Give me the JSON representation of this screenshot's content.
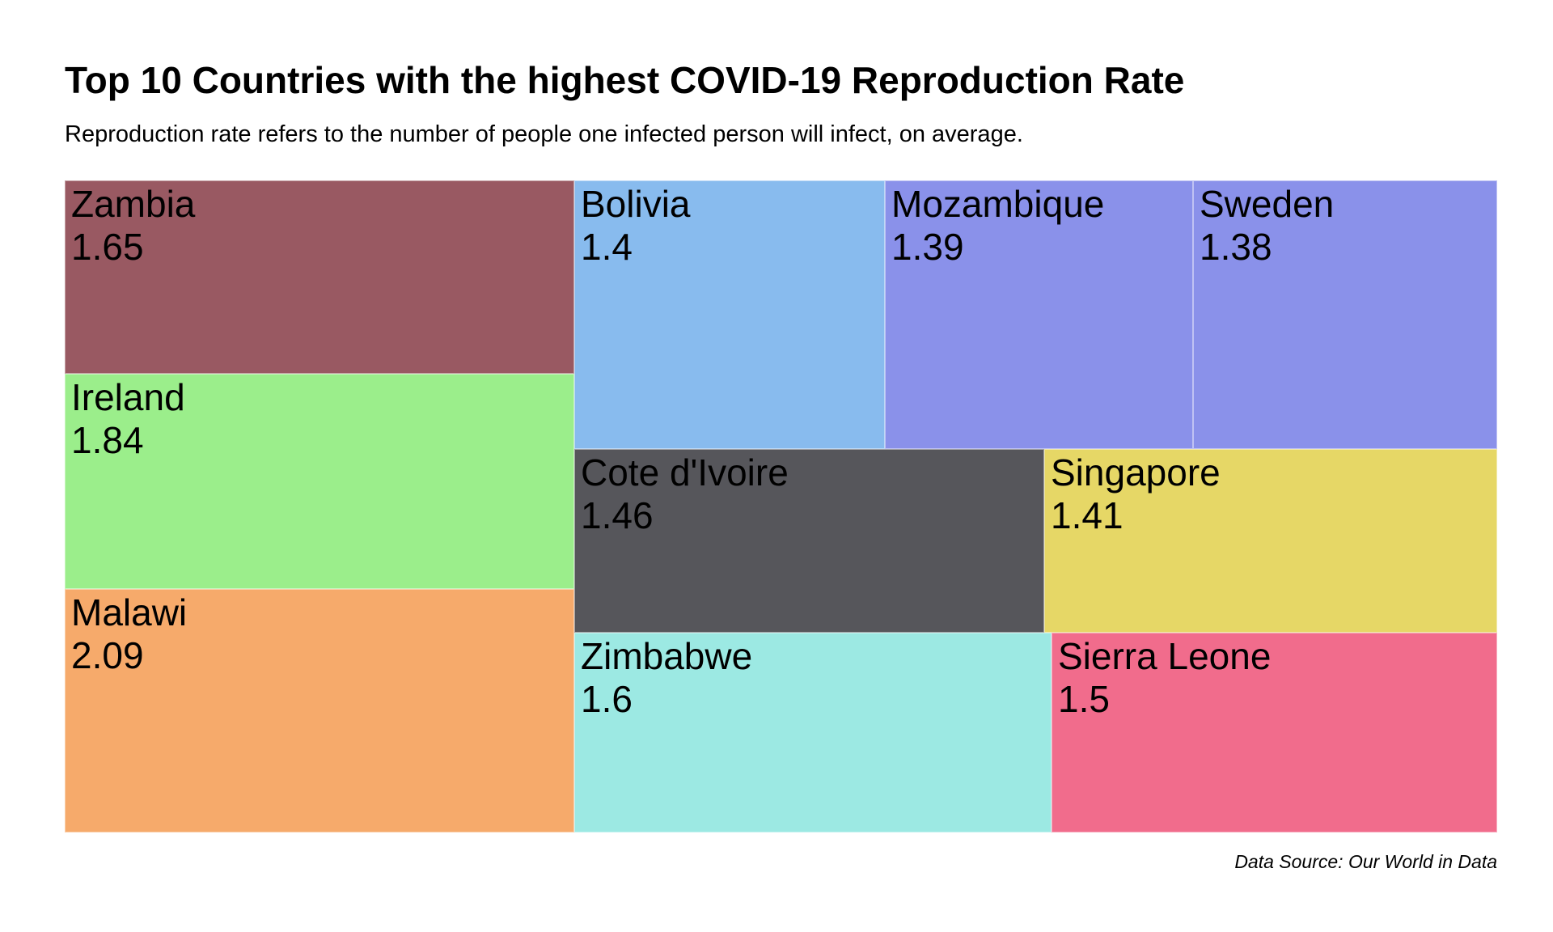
{
  "title": "Top 10 Countries with the highest COVID-19 Reproduction Rate",
  "subtitle": "Reproduction rate refers to the number of people one infected person will infect, on average.",
  "source": "Data Source: Our World in Data",
  "chart_data": {
    "type": "treemap",
    "title": "Top 10 Countries with the highest COVID-19 Reproduction Rate",
    "subtitle": "Reproduction rate refers to the number of people one infected person will infect, on average.",
    "items": [
      {
        "name": "Zambia",
        "value": "1.65",
        "color": "#995962"
      },
      {
        "name": "Ireland",
        "value": "1.84",
        "color": "#9bee8b"
      },
      {
        "name": "Malawi",
        "value": "2.09",
        "color": "#f6aa6b"
      },
      {
        "name": "Bolivia",
        "value": "1.4",
        "color": "#88bbee"
      },
      {
        "name": "Mozambique",
        "value": "1.39",
        "color": "#8a91ea"
      },
      {
        "name": "Sweden",
        "value": "1.38",
        "color": "#8a91ea"
      },
      {
        "name": "Cote d'Ivoire",
        "value": "1.46",
        "color": "#56565b"
      },
      {
        "name": "Singapore",
        "value": "1.41",
        "color": "#e6d766"
      },
      {
        "name": "Zimbabwe",
        "value": "1.6",
        "color": "#9ce9e3"
      },
      {
        "name": "Sierra Leone",
        "value": "1.5",
        "color": "#f16c8c"
      }
    ]
  }
}
